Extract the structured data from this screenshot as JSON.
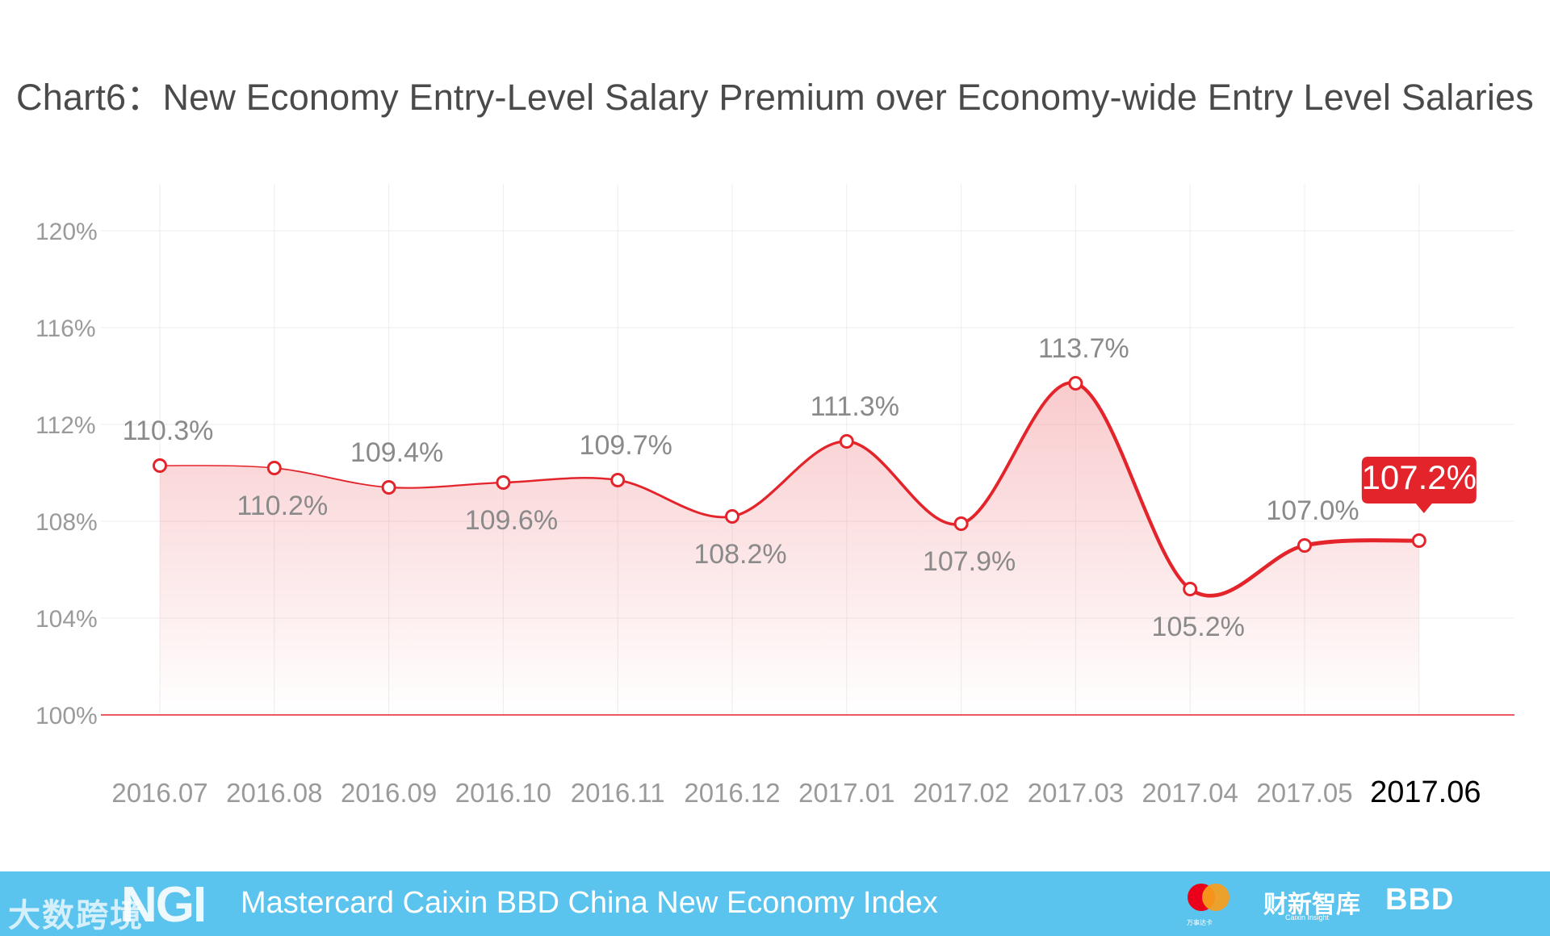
{
  "colors": {
    "line": "#e3242b",
    "grid": "#ececec",
    "baseline": "#e3242b",
    "label": "#8a8a8a",
    "tick": "#9a9a9a",
    "highlight_tick": "#000000",
    "footer_bg": "#5ac3ee"
  },
  "chart_data": {
    "type": "line",
    "title": "Chart6：New Economy Entry-Level Salary Premium over Economy-wide Entry Level Salaries",
    "categories": [
      "2016.07",
      "2016.08",
      "2016.09",
      "2016.10",
      "2016.11",
      "2016.12",
      "2017.01",
      "2017.02",
      "2017.03",
      "2017.04",
      "2017.05",
      "2017.06"
    ],
    "values": [
      110.3,
      110.2,
      109.4,
      109.6,
      109.7,
      108.2,
      111.3,
      107.9,
      113.7,
      105.2,
      107.0,
      107.2
    ],
    "data_labels": [
      "110.3%",
      "110.2%",
      "109.4%",
      "109.6%",
      "109.7%",
      "108.2%",
      "111.3%",
      "107.9%",
      "113.7%",
      "105.2%",
      "107.0%",
      "107.2%"
    ],
    "label_positions": [
      "above",
      "below",
      "above",
      "below",
      "above",
      "below",
      "above",
      "below",
      "above",
      "below",
      "above",
      "callout"
    ],
    "y_ticks": [
      {
        "value": 100,
        "label": "100%"
      },
      {
        "value": 104,
        "label": "104%"
      },
      {
        "value": 108,
        "label": "108%"
      },
      {
        "value": 112,
        "label": "112%"
      },
      {
        "value": 116,
        "label": "116%"
      },
      {
        "value": 120,
        "label": "120%"
      }
    ],
    "ylim": [
      100,
      120
    ],
    "xlabel": "",
    "ylabel": "",
    "grid": true,
    "highlight_index": 11
  },
  "footer": {
    "watermark": "大数跨境",
    "ngi_logo": "NGI",
    "index_name": "Mastercard Caixin BBD China New Economy Index",
    "mastercard_sub": "万事达卡",
    "caixin_logo": "财新智库",
    "caixin_sub": "Caixin Insight",
    "bbd_logo": "BBD"
  }
}
